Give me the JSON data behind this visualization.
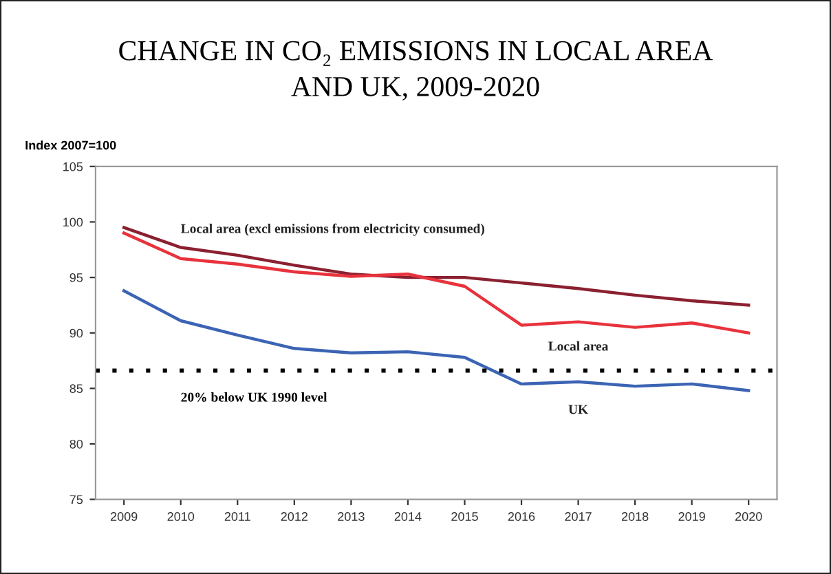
{
  "chart_data": {
    "type": "line",
    "title": "CHANGE IN CO₂ EMISSIONS IN LOCAL AREA\nAND UK, 2009-2020",
    "ylabel": "Index 2007=100",
    "x": [
      2009,
      2010,
      2011,
      2012,
      2013,
      2014,
      2015,
      2016,
      2017,
      2018,
      2019,
      2020
    ],
    "xlim": [
      2008.5,
      2020.5
    ],
    "xticks": [
      2009,
      2010,
      2011,
      2012,
      2013,
      2014,
      2015,
      2016,
      2017,
      2018,
      2019,
      2020
    ],
    "ylim": [
      75,
      105
    ],
    "yticks": [
      75,
      80,
      85,
      90,
      95,
      100,
      105
    ],
    "grid": false,
    "legend": false,
    "marker": "none",
    "line_style": "solid",
    "series": [
      {
        "name": "Local area (excl emissions from electricity consumed)",
        "color": "#8b2030",
        "values": [
          99.5,
          97.7,
          97.0,
          96.1,
          95.3,
          95.0,
          95.0,
          94.5,
          94.0,
          93.4,
          92.9,
          92.5
        ]
      },
      {
        "name": "Local area",
        "color": "#e8323c",
        "values": [
          99.0,
          96.7,
          96.2,
          95.5,
          95.1,
          95.3,
          94.2,
          90.7,
          91.0,
          90.5,
          90.9,
          90.0
        ]
      },
      {
        "name": "UK",
        "color": "#3c64b4",
        "values": [
          93.8,
          91.1,
          89.8,
          88.6,
          88.2,
          88.3,
          87.8,
          85.4,
          85.6,
          85.2,
          85.4,
          84.8
        ]
      }
    ],
    "ref_lines": [
      {
        "axis": "y",
        "value": 86.6,
        "label": "20% below UK 1990 level",
        "color": "#000000",
        "line_style": "dotted"
      }
    ]
  }
}
